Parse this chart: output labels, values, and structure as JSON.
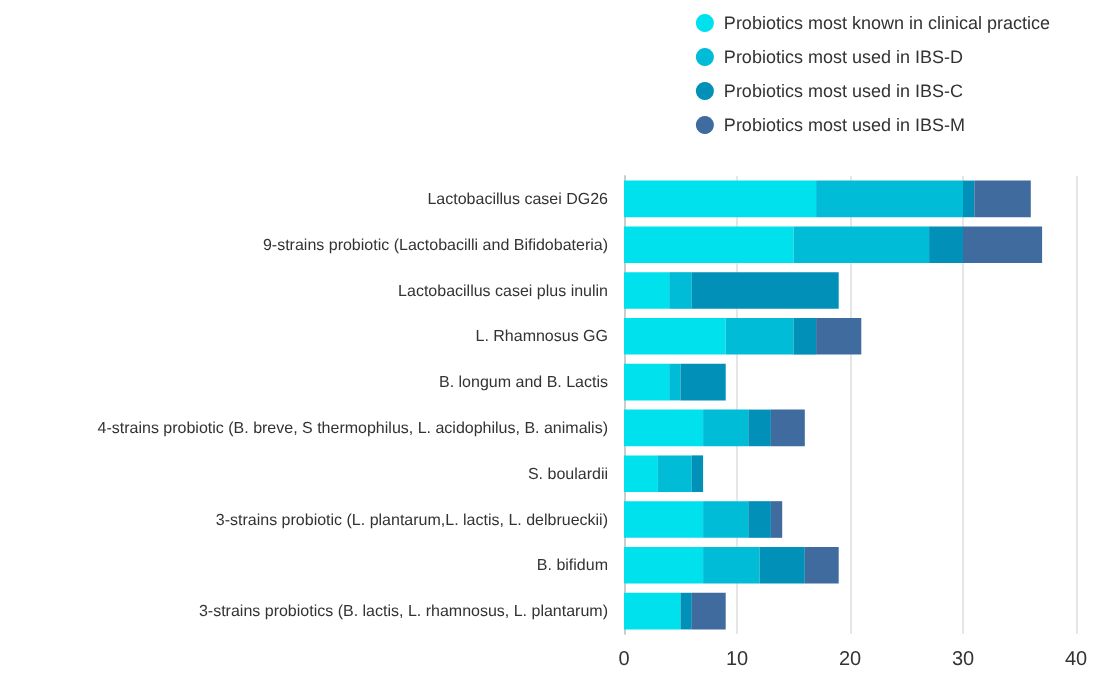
{
  "chart_data": {
    "type": "bar",
    "orientation": "horizontal",
    "stacked": true,
    "categories": [
      "Lactobacillus casei DG26",
      "9-strains probiotic (Lactobacilli and Bifidobateria)",
      "Lactobacillus casei plus inulin",
      "L. Rhamnosus GG",
      "B. longum and B. Lactis",
      "4-strains probiotic (B. breve, S thermophilus, L. acidophilus, B. animalis)",
      "S. boulardii",
      "3-strains probiotic (L. plantarum,L. lactis, L. delbrueckii)",
      "B. bifidum",
      "3-strains probiotics (B. lactis, L. rhamnosus, L. plantarum)"
    ],
    "series": [
      {
        "name": "Probiotics most known in clinical practice",
        "color": "#00e1ee",
        "values": [
          17,
          15,
          4,
          9,
          4,
          7,
          3,
          7,
          7,
          5
        ]
      },
      {
        "name": "Probiotics most used in IBS-D",
        "color": "#00bcd6",
        "values": [
          13,
          12,
          2,
          6,
          1,
          4,
          3,
          4,
          5,
          0
        ]
      },
      {
        "name": "Probiotics most used in IBS-C",
        "color": "#0090b8",
        "values": [
          1,
          3,
          13,
          2,
          4,
          2,
          1,
          2,
          4,
          1
        ]
      },
      {
        "name": "Probiotics most used in IBS-M",
        "color": "#3f6b9f",
        "values": [
          5,
          7,
          0,
          4,
          0,
          3,
          0,
          1,
          3,
          3
        ]
      }
    ],
    "xlim": [
      0,
      40
    ],
    "xticks": [
      0,
      10,
      20,
      30,
      40
    ],
    "grid": "x",
    "legend": "top right"
  }
}
